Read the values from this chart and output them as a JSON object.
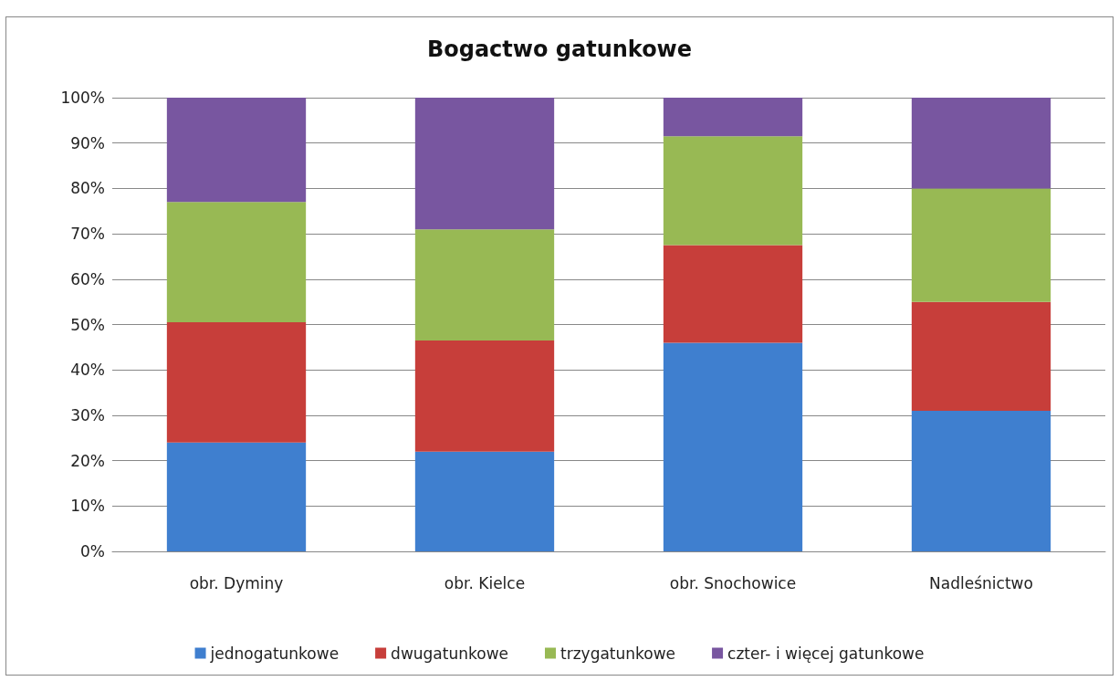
{
  "chart_data": {
    "type": "bar",
    "title": "Bogactwo gatunkowe",
    "stacked": true,
    "categories": [
      "obr. Dyminy",
      "obr. Kielce",
      "obr. Snochowice",
      "Nadleśnictwo"
    ],
    "series": [
      {
        "name": "jednogatunkowe",
        "color": "#3f7fcf",
        "values": [
          24,
          22,
          46,
          31
        ]
      },
      {
        "name": "dwugatunkowe",
        "color": "#c73e3a",
        "values": [
          26.5,
          24.5,
          21.5,
          24
        ]
      },
      {
        "name": "trzygatunkowe",
        "color": "#98b954",
        "values": [
          26.5,
          24.5,
          24,
          25
        ]
      },
      {
        "name": "czter- i więcej gatunkowe",
        "color": "#7856a0",
        "values": [
          23,
          29,
          8.5,
          20
        ]
      }
    ],
    "ylim": [
      0,
      100
    ],
    "yticks": [
      {
        "value": 0,
        "label": "0%"
      },
      {
        "value": 10,
        "label": "10%"
      },
      {
        "value": 20,
        "label": "20%"
      },
      {
        "value": 30,
        "label": "30%"
      },
      {
        "value": 40,
        "label": "40%"
      },
      {
        "value": 50,
        "label": "50%"
      },
      {
        "value": 60,
        "label": "60%"
      },
      {
        "value": 70,
        "label": "70%"
      },
      {
        "value": 80,
        "label": "80%"
      },
      {
        "value": 90,
        "label": "90%"
      },
      {
        "value": 100,
        "label": "100%"
      }
    ],
    "grid": "y",
    "legend": "bottom"
  }
}
